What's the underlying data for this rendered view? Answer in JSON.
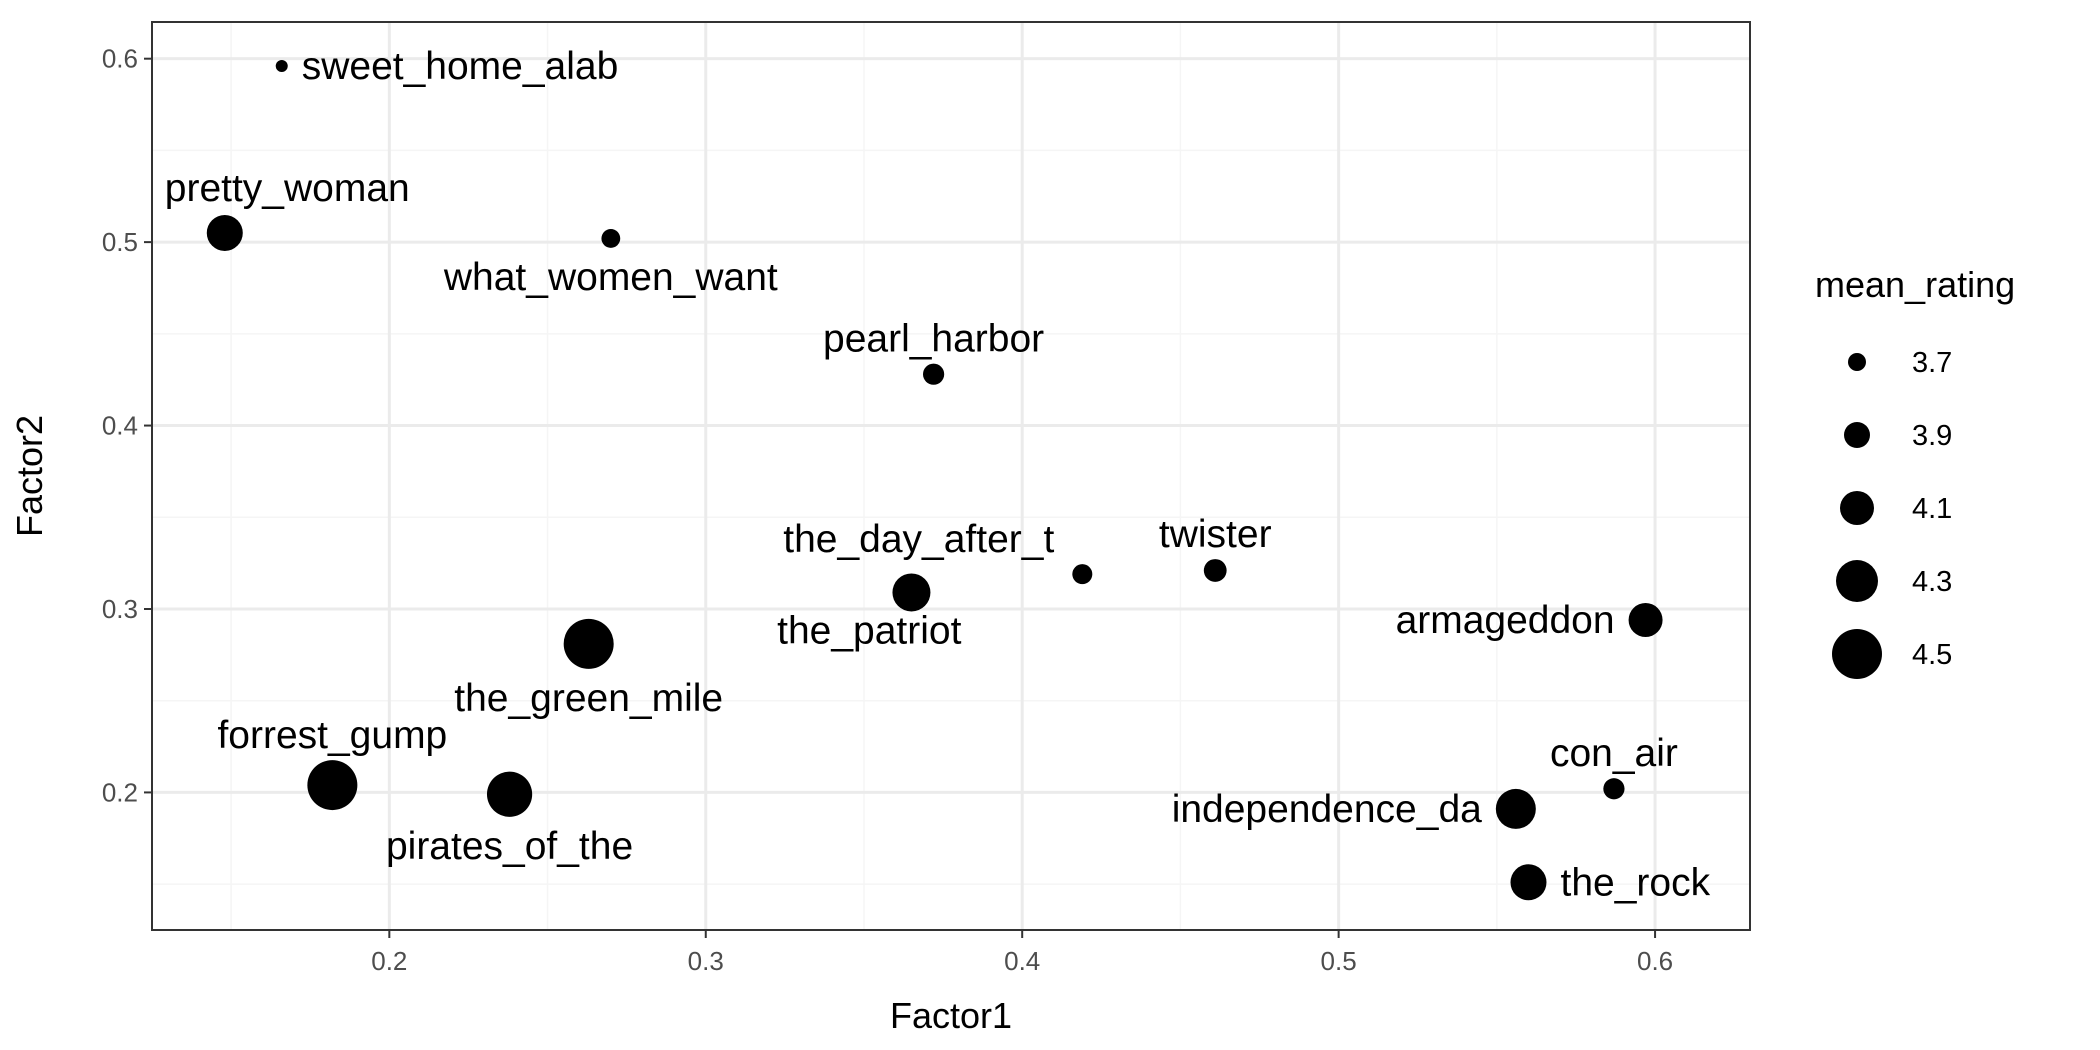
{
  "chart_data": {
    "type": "scatter",
    "xlabel": "Factor1",
    "ylabel": "Factor2",
    "xlim": [
      0.125,
      0.63
    ],
    "ylim": [
      0.125,
      0.62
    ],
    "x_ticks": [
      0.2,
      0.3,
      0.4,
      0.5,
      0.6
    ],
    "x_tick_labels": [
      "0.2",
      "0.3",
      "0.4",
      "0.5",
      "0.6"
    ],
    "y_ticks": [
      0.2,
      0.3,
      0.4,
      0.5,
      0.6
    ],
    "y_tick_labels": [
      "0.2",
      "0.3",
      "0.4",
      "0.5",
      "0.6"
    ],
    "grid": true,
    "size_variable": "mean_rating",
    "legend": {
      "title": "mean_rating",
      "placement": "right",
      "entries": [
        {
          "value": 3.7,
          "label": "3.7"
        },
        {
          "value": 3.9,
          "label": "3.9"
        },
        {
          "value": 4.1,
          "label": "4.1"
        },
        {
          "value": 4.3,
          "label": "4.3"
        },
        {
          "value": 4.5,
          "label": "4.5"
        }
      ]
    },
    "points": [
      {
        "label": "sweet_home_alab",
        "x": 0.166,
        "y": 0.596,
        "mean_rating": 3.55,
        "label_side": "right"
      },
      {
        "label": "pretty_woman",
        "x": 0.148,
        "y": 0.505,
        "mean_rating": 4.15,
        "label_side": "above-right"
      },
      {
        "label": "what_women_want",
        "x": 0.27,
        "y": 0.502,
        "mean_rating": 3.72,
        "label_side": "below"
      },
      {
        "label": "pearl_harbor",
        "x": 0.372,
        "y": 0.428,
        "mean_rating": 3.78,
        "label_side": "above"
      },
      {
        "label": "the_day_after_t",
        "x": 0.419,
        "y": 0.319,
        "mean_rating": 3.75,
        "label_side": "above-left"
      },
      {
        "label": "twister",
        "x": 0.461,
        "y": 0.321,
        "mean_rating": 3.82,
        "label_side": "above"
      },
      {
        "label": "the_patriot",
        "x": 0.365,
        "y": 0.309,
        "mean_rating": 4.2,
        "label_side": "below-left"
      },
      {
        "label": "armageddon",
        "x": 0.597,
        "y": 0.294,
        "mean_rating": 4.1,
        "label_side": "left"
      },
      {
        "label": "the_green_mile",
        "x": 0.263,
        "y": 0.281,
        "mean_rating": 4.5,
        "label_side": "below"
      },
      {
        "label": "forrest_gump",
        "x": 0.182,
        "y": 0.204,
        "mean_rating": 4.5,
        "label_side": "above"
      },
      {
        "label": "pirates_of_the",
        "x": 0.238,
        "y": 0.199,
        "mean_rating": 4.38,
        "label_side": "below"
      },
      {
        "label": "con_air",
        "x": 0.587,
        "y": 0.202,
        "mean_rating": 3.78,
        "label_side": "above"
      },
      {
        "label": "independence_da",
        "x": 0.556,
        "y": 0.191,
        "mean_rating": 4.25,
        "label_side": "left"
      },
      {
        "label": "the_rock",
        "x": 0.56,
        "y": 0.151,
        "mean_rating": 4.15,
        "label_side": "right"
      }
    ],
    "colors": {
      "point": "#000000",
      "panel_background": "#ffffff",
      "grid_major": "#ebebeb",
      "grid_minor": "#f5f5f5",
      "panel_border": "#333333",
      "tick_text": "#4d4d4d"
    }
  }
}
